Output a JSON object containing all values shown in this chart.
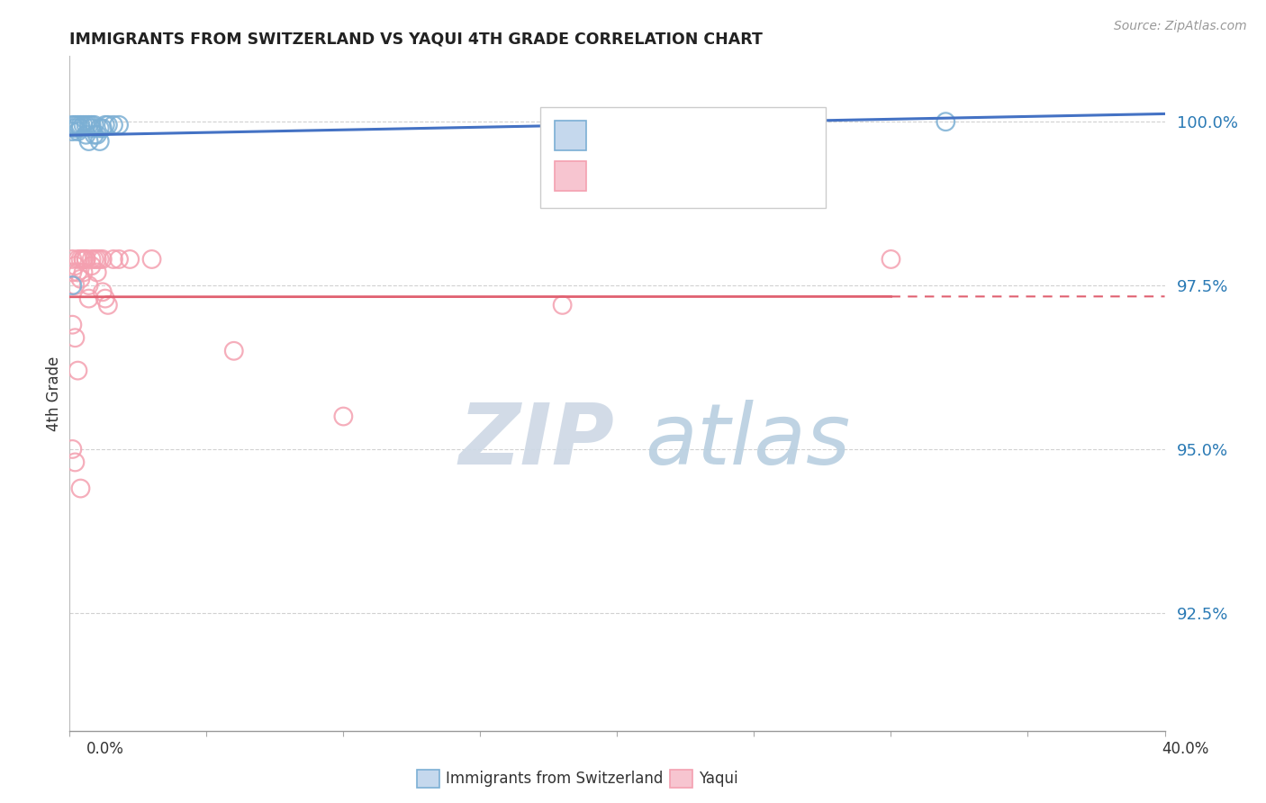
{
  "title": "IMMIGRANTS FROM SWITZERLAND VS YAQUI 4TH GRADE CORRELATION CHART",
  "source": "Source: ZipAtlas.com",
  "ylabel": "4th Grade",
  "ytick_labels": [
    "92.5%",
    "95.0%",
    "97.5%",
    "100.0%"
  ],
  "ytick_values": [
    0.925,
    0.95,
    0.975,
    1.0
  ],
  "xlim": [
    0.0,
    0.4
  ],
  "ylim": [
    0.907,
    1.01
  ],
  "blue_scatter_x": [
    0.001,
    0.001,
    0.002,
    0.002,
    0.003,
    0.003,
    0.004,
    0.004,
    0.005,
    0.006,
    0.006,
    0.007,
    0.007,
    0.008,
    0.008,
    0.009,
    0.009,
    0.01,
    0.011,
    0.011,
    0.012,
    0.013,
    0.014,
    0.016,
    0.018,
    0.001,
    0.24,
    0.32
  ],
  "blue_scatter_y": [
    0.9995,
    0.9985,
    0.9995,
    0.999,
    0.9995,
    0.9985,
    0.9995,
    0.999,
    0.9995,
    0.9995,
    0.998,
    0.9995,
    0.997,
    0.9995,
    0.999,
    0.9995,
    0.998,
    0.998,
    0.999,
    0.997,
    0.999,
    0.9995,
    0.9995,
    0.9995,
    0.9995,
    0.975,
    1.0,
    1.0
  ],
  "pink_scatter_x": [
    0.001,
    0.001,
    0.002,
    0.002,
    0.003,
    0.003,
    0.004,
    0.004,
    0.005,
    0.005,
    0.006,
    0.006,
    0.007,
    0.007,
    0.008,
    0.008,
    0.009,
    0.01,
    0.01,
    0.011,
    0.012,
    0.012,
    0.013,
    0.014,
    0.016,
    0.018,
    0.022,
    0.03,
    0.001,
    0.002,
    0.004,
    0.06,
    0.1,
    0.18,
    0.3,
    0.001,
    0.002,
    0.003,
    0.005
  ],
  "pink_scatter_y": [
    0.979,
    0.977,
    0.978,
    0.975,
    0.979,
    0.977,
    0.979,
    0.976,
    0.979,
    0.977,
    0.979,
    0.979,
    0.975,
    0.973,
    0.979,
    0.978,
    0.979,
    0.979,
    0.977,
    0.979,
    0.979,
    0.974,
    0.973,
    0.972,
    0.979,
    0.979,
    0.979,
    0.979,
    0.95,
    0.948,
    0.944,
    0.965,
    0.955,
    0.972,
    0.979,
    0.969,
    0.967,
    0.962,
    0.979
  ],
  "blue_color": "#7bafd4",
  "pink_color": "#f4a0b0",
  "blue_line_color": "#4472c4",
  "pink_line_color": "#e06070",
  "background_color": "#ffffff",
  "grid_color": "#cccccc",
  "watermark_zip_color": "#cdd8e5",
  "watermark_atlas_color": "#b8cfe0"
}
